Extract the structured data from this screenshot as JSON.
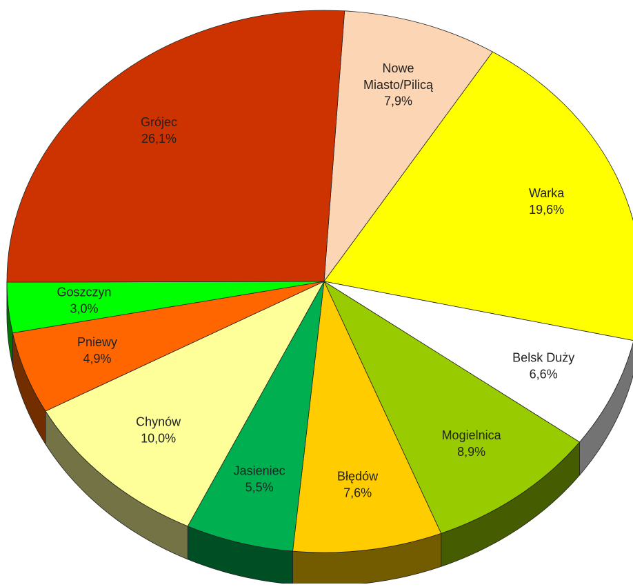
{
  "chart_data": {
    "type": "pie",
    "categories": [
      "Nowe Miasto/Pilicą",
      "Warka",
      "Belsk Duży",
      "Mogielnica",
      "Błędów",
      "Jasieniec",
      "Chynów",
      "Pniewy",
      "Goszczyn",
      "Grójec"
    ],
    "values": [
      7.9,
      19.6,
      6.6,
      8.9,
      7.6,
      5.5,
      10.0,
      4.9,
      3.0,
      26.1
    ],
    "value_labels": [
      "7,9%",
      "19,6%",
      "6,6%",
      "8,9%",
      "7,6%",
      "5,5%",
      "10,0%",
      "4,9%",
      "3,0%",
      "26,1%"
    ],
    "colors": [
      "#fcd5b5",
      "#ffff00",
      "#ffffff",
      "#99cc00",
      "#ffcc00",
      "#00b050",
      "#ffff99",
      "#ff6600",
      "#00ff00",
      "#cc3300"
    ]
  }
}
